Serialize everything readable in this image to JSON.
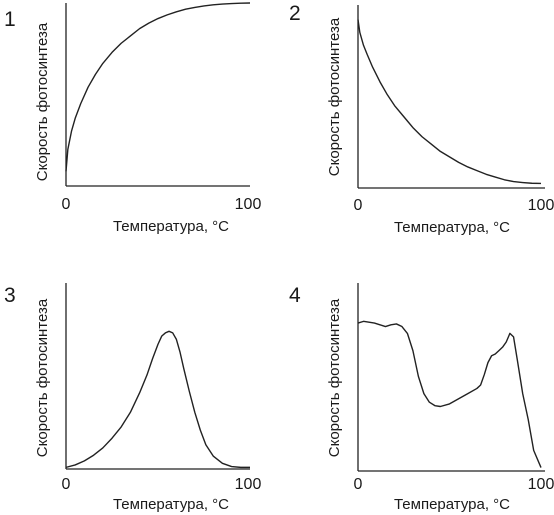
{
  "colors": {
    "ink": "#222222",
    "background": "#ffffff"
  },
  "chart_data": [
    {
      "type": "line",
      "panel_label": "1",
      "xlabel": "Температура, °С",
      "ylabel": "Скорость фотосинтеза",
      "x_tick_labels": [
        "0",
        "100"
      ],
      "xlim": [
        0,
        100
      ],
      "ylim": [
        0,
        100
      ],
      "grid": false,
      "series": [
        {
          "x": [
            0,
            1,
            3,
            5,
            8,
            12,
            16,
            20,
            25,
            30,
            35,
            40,
            45,
            50,
            55,
            60,
            65,
            70,
            75,
            80,
            85,
            90,
            95,
            100
          ],
          "y": [
            8,
            20,
            30,
            37,
            45,
            54,
            61,
            67,
            73,
            78,
            82,
            86,
            89,
            91.5,
            93.5,
            95.2,
            96.6,
            97.6,
            98.4,
            99,
            99.4,
            99.7,
            99.9,
            100
          ]
        }
      ]
    },
    {
      "type": "line",
      "panel_label": "2",
      "xlabel": "Температура, °С",
      "ylabel": "Скорость фотосинтеза",
      "x_tick_labels": [
        "0",
        "100"
      ],
      "xlim": [
        0,
        100
      ],
      "ylim": [
        0,
        100
      ],
      "grid": false,
      "series": [
        {
          "x": [
            0,
            1,
            3,
            5,
            8,
            12,
            16,
            20,
            25,
            30,
            35,
            40,
            45,
            50,
            55,
            60,
            65,
            70,
            75,
            80,
            85,
            90,
            95,
            100
          ],
          "y": [
            92,
            85,
            78,
            73,
            66,
            58,
            51,
            45,
            39,
            33,
            28,
            24,
            20,
            17,
            14,
            11.5,
            9.5,
            7.5,
            6,
            4.5,
            3.5,
            3,
            2.6,
            2.5
          ]
        }
      ]
    },
    {
      "type": "line",
      "panel_label": "3",
      "xlabel": "Температура, °С",
      "ylabel": "Скорость фотосинтеза",
      "x_tick_labels": [
        "0",
        "100"
      ],
      "xlim": [
        0,
        100
      ],
      "ylim": [
        0,
        100
      ],
      "grid": false,
      "series": [
        {
          "x": [
            0,
            5,
            10,
            15,
            20,
            25,
            30,
            35,
            40,
            44,
            47,
            50,
            52,
            54,
            56,
            58,
            60,
            62,
            64,
            67,
            70,
            73,
            76,
            80,
            85,
            90,
            95,
            100
          ],
          "y": [
            1,
            2.5,
            5,
            8.5,
            13,
            19,
            26,
            35,
            47,
            58,
            68,
            77,
            82,
            84,
            85,
            84,
            80,
            72,
            62,
            48,
            35,
            24,
            15,
            8,
            3.5,
            1.5,
            1,
            1
          ]
        }
      ]
    },
    {
      "type": "line",
      "panel_label": "4",
      "xlabel": "Температура, °С",
      "ylabel": "Скорость фотосинтеза",
      "x_tick_labels": [
        "0",
        "100"
      ],
      "xlim": [
        0,
        100
      ],
      "ylim": [
        0,
        100
      ],
      "grid": false,
      "series": [
        {
          "x": [
            0,
            3,
            6,
            9,
            12,
            15,
            18,
            21,
            24,
            27,
            30,
            33,
            36,
            39,
            42,
            45,
            50,
            55,
            60,
            65,
            67,
            69,
            71,
            73,
            75,
            77,
            79,
            81,
            83,
            85,
            87,
            90,
            93,
            96,
            100
          ],
          "y": [
            86,
            87,
            86.5,
            86,
            85,
            84,
            85,
            85.5,
            84,
            80,
            70,
            55,
            45,
            40,
            38,
            37.5,
            39,
            42,
            45,
            48,
            50,
            56,
            63,
            67,
            68,
            70,
            72,
            75,
            80,
            78,
            65,
            45,
            30,
            12,
            2
          ]
        }
      ]
    }
  ]
}
